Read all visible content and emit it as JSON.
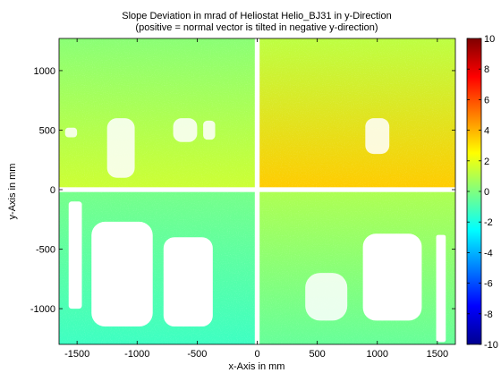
{
  "chart_data": {
    "type": "heatmap",
    "title": "Slope Deviation in mrad of Heliostat Helio_BJ31 in y-Direction",
    "subtitle": "(positive = normal vector is tilted in negative y-direction)",
    "xlabel": "x-Axis in mm",
    "ylabel": "y-Axis in mm",
    "xlim": [
      -1650,
      1650
    ],
    "ylim": [
      -1300,
      1270
    ],
    "x_ticks": [
      -1500,
      -1000,
      -500,
      0,
      500,
      1000,
      1500
    ],
    "y_ticks": [
      -1000,
      -500,
      0,
      500,
      1000
    ],
    "colorbar": {
      "range": [
        -10,
        10
      ],
      "ticks": [
        -10,
        -8,
        -6,
        -4,
        -2,
        0,
        2,
        4,
        6,
        8,
        10
      ],
      "colormap": "jet"
    },
    "quadrants": [
      {
        "name": "top-left",
        "x": [
          -1650,
          -20
        ],
        "y": [
          20,
          1270
        ],
        "value_min": 0.2,
        "value_max": 1.5
      },
      {
        "name": "top-right",
        "x": [
          20,
          1650
        ],
        "y": [
          20,
          1270
        ],
        "value_min": 1.2,
        "value_max": 3.5
      },
      {
        "name": "bottom-left",
        "x": [
          -1650,
          -20
        ],
        "y": [
          -1300,
          -20
        ],
        "value_min": -1.3,
        "value_max": -0.2
      },
      {
        "name": "bottom-right",
        "x": [
          20,
          1650
        ],
        "y": [
          -1300,
          -20
        ],
        "value_min": -0.5,
        "value_max": 0.9
      }
    ],
    "gaps": [
      {
        "name": "left-hole-1",
        "x": [
          -1380,
          -870
        ],
        "y": [
          -1150,
          -270
        ]
      },
      {
        "name": "left-hole-2",
        "x": [
          -780,
          -370
        ],
        "y": [
          -1150,
          -400
        ]
      },
      {
        "name": "right-hole-1",
        "x": [
          880,
          1370
        ],
        "y": [
          -1100,
          -370
        ]
      },
      {
        "name": "left-edge-strip",
        "x": [
          -1570,
          -1460
        ],
        "y": [
          -1000,
          -100
        ]
      },
      {
        "name": "right-edge-strip",
        "x": [
          1490,
          1570
        ],
        "y": [
          -1280,
          -380
        ]
      },
      {
        "name": "scatter-1",
        "x": [
          -1250,
          -1020
        ],
        "y": [
          100,
          600
        ]
      },
      {
        "name": "scatter-2",
        "x": [
          -700,
          -500
        ],
        "y": [
          400,
          600
        ]
      },
      {
        "name": "scatter-3",
        "x": [
          -450,
          -350
        ],
        "y": [
          420,
          580
        ]
      },
      {
        "name": "scatter-4",
        "x": [
          900,
          1100
        ],
        "y": [
          300,
          600
        ]
      },
      {
        "name": "scatter-5",
        "x": [
          400,
          750
        ],
        "y": [
          -1100,
          -700
        ]
      },
      {
        "name": "scatter-6",
        "x": [
          -1600,
          -1500
        ],
        "y": [
          440,
          520
        ]
      }
    ],
    "grid": false,
    "legend": "colorbar-right"
  }
}
